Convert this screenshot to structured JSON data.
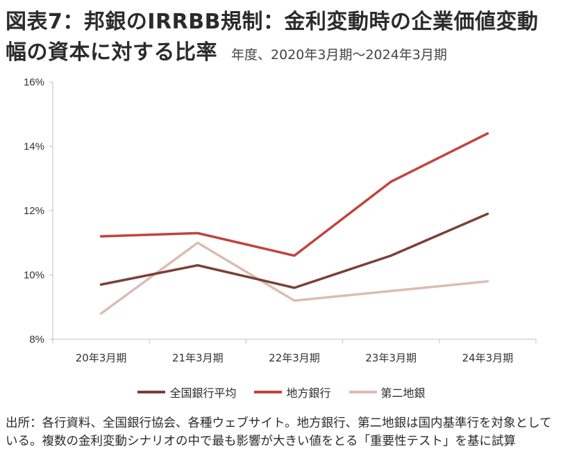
{
  "title": {
    "line1": "図表7：邦銀のIRRBB規制：金利変動時の企業価値変動",
    "line2": "幅の資本に対する比率",
    "subtitle": "年度、2020年3月期〜2024年3月期"
  },
  "chart_data": {
    "type": "line",
    "categories": [
      "20年3月期",
      "21年3月期",
      "22年3月期",
      "23年3月期",
      "24年3月期"
    ],
    "ylim": [
      8,
      16
    ],
    "yticks": [
      "8%",
      "10%",
      "12%",
      "14%",
      "16%"
    ],
    "ytick_values": [
      8,
      10,
      12,
      14,
      16
    ],
    "grid": false,
    "legend_position": "bottom",
    "series": [
      {
        "name": "全国銀行平均",
        "color": "#7b4036",
        "values": [
          9.7,
          10.3,
          9.6,
          10.6,
          11.9
        ]
      },
      {
        "name": "地方銀行",
        "color": "#c0443e",
        "values": [
          11.2,
          11.3,
          10.6,
          12.9,
          14.4
        ]
      },
      {
        "name": "第二地銀",
        "color": "#dcbcb2",
        "values": [
          8.8,
          11.0,
          9.2,
          9.5,
          9.8
        ]
      }
    ]
  },
  "note": "出所：各行資料、全国銀行協会、各種ウェブサイト。地方銀行、第二地銀は国内基準行を対象としている。複数の金利変動シナリオの中で最も影響が大きい値をとる「重要性テスト」を基に試算"
}
